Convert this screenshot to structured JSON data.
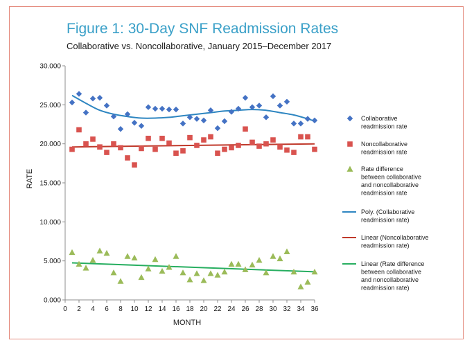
{
  "chart_data": {
    "type": "scatter",
    "title": "Figure 1: 30-Day SNF Readmission Rates",
    "subtitle": "Collaborative vs. Noncollaborative, January 2015–December 2017",
    "xlabel": "MONTH",
    "ylabel": "RATE",
    "xlim": [
      0,
      36
    ],
    "ylim": [
      0,
      30
    ],
    "x_ticks": [
      "0",
      "2",
      "4",
      "6",
      "8",
      "10",
      "12",
      "14",
      "16",
      "18",
      "20",
      "22",
      "24",
      "26",
      "28",
      "30",
      "32",
      "34",
      "36"
    ],
    "y_ticks": [
      "0.000",
      "5.000",
      "10.000",
      "15.000",
      "20.000",
      "25.000",
      "30.000"
    ],
    "grid": false,
    "legend_position": "right",
    "x": [
      1,
      2,
      3,
      4,
      5,
      6,
      7,
      8,
      9,
      10,
      11,
      12,
      13,
      14,
      15,
      16,
      17,
      18,
      19,
      20,
      21,
      22,
      23,
      24,
      25,
      26,
      27,
      28,
      29,
      30,
      31,
      32,
      33,
      34,
      35,
      36
    ],
    "series": [
      {
        "name": "Collaborative readmission rate",
        "legend_lines": [
          "Collaborative",
          "readmission rate"
        ],
        "marker": "diamond",
        "color": "#4472c4",
        "values": [
          25.3,
          26.4,
          24.0,
          25.8,
          25.9,
          24.9,
          23.5,
          21.9,
          23.8,
          22.7,
          22.3,
          24.7,
          24.5,
          24.5,
          24.4,
          24.4,
          22.6,
          23.4,
          23.2,
          23.0,
          24.3,
          22.0,
          22.9,
          24.1,
          24.5,
          25.9,
          24.7,
          24.9,
          23.4,
          26.1,
          24.9,
          25.4,
          22.6,
          22.6,
          23.2,
          23.0
        ]
      },
      {
        "name": "Noncollaborative readmission rate",
        "legend_lines": [
          "Noncollaborative",
          "readmission rate"
        ],
        "marker": "square",
        "color": "#d9534f",
        "values": [
          19.3,
          21.8,
          20.0,
          20.6,
          19.6,
          18.9,
          20.0,
          19.5,
          18.2,
          17.3,
          19.4,
          20.7,
          19.3,
          20.7,
          20.1,
          18.8,
          19.1,
          20.8,
          19.8,
          20.5,
          20.9,
          18.8,
          19.3,
          19.5,
          19.8,
          21.9,
          20.2,
          19.7,
          20.0,
          20.5,
          19.6,
          19.2,
          18.9,
          20.9,
          20.9,
          19.3
        ]
      },
      {
        "name": "Rate difference between collaborative and noncollaborative readmission rate",
        "legend_lines": [
          "Rate difference",
          "between collaborative",
          "and noncollaborative",
          "readmission rate"
        ],
        "marker": "triangle",
        "color": "#9bbb59",
        "values": [
          6.1,
          4.6,
          4.1,
          5.1,
          6.3,
          6.0,
          3.5,
          2.4,
          5.6,
          5.4,
          2.9,
          4.0,
          5.2,
          3.7,
          4.2,
          5.6,
          3.5,
          2.6,
          3.4,
          2.5,
          3.4,
          3.2,
          3.6,
          4.6,
          4.6,
          3.9,
          4.5,
          5.1,
          3.5,
          5.6,
          5.3,
          6.2,
          3.6,
          1.7,
          2.3,
          3.6
        ]
      }
    ],
    "trendlines": [
      {
        "name": "Poly. (Collaborative readmission rate)",
        "legend_lines": [
          "Poly. (Collaborative",
          "readmission rate)"
        ],
        "type": "polynomial",
        "color": "#2e86c1",
        "fitted": [
          [
            1,
            26.2
          ],
          [
            3,
            25.2
          ],
          [
            5,
            24.3
          ],
          [
            7,
            23.8
          ],
          [
            9,
            23.5
          ],
          [
            11,
            23.3
          ],
          [
            13,
            23.3
          ],
          [
            15,
            23.4
          ],
          [
            17,
            23.6
          ],
          [
            19,
            23.8
          ],
          [
            21,
            24.0
          ],
          [
            23,
            24.2
          ],
          [
            25,
            24.3
          ],
          [
            27,
            24.4
          ],
          [
            29,
            24.3
          ],
          [
            31,
            24.0
          ],
          [
            33,
            23.7
          ],
          [
            35,
            23.2
          ],
          [
            36,
            22.9
          ]
        ]
      },
      {
        "name": "Linear (Noncollaborative readmission rate)",
        "legend_lines": [
          "Linear (Noncollaborative",
          "readmission rate)"
        ],
        "type": "linear",
        "color": "#c0392b",
        "fitted": [
          [
            1,
            19.6
          ],
          [
            36,
            20.0
          ]
        ]
      },
      {
        "name": "Linear (Rate difference between collaborative and noncollaborative readmission rate)",
        "legend_lines": [
          "Linear (Rate difference",
          "between collaborative",
          "and noncollaborative",
          "readmission rate)"
        ],
        "type": "linear",
        "color": "#27ae60",
        "fitted": [
          [
            1,
            4.75
          ],
          [
            36,
            3.6
          ]
        ]
      }
    ]
  }
}
